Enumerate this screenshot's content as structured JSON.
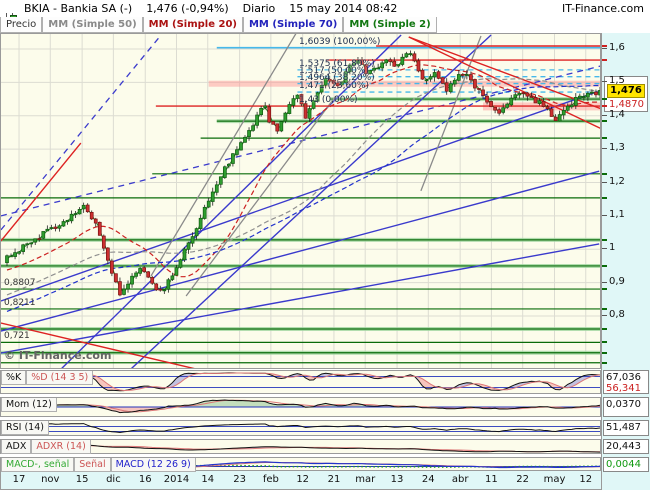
{
  "header": {
    "symbol_title": "BKIA - Bankia SA (-)",
    "quote": "1,476 (-0,94%)",
    "timeframe": "Diario",
    "datetime": "15 may 2014 08:42",
    "brand": "IT-Finance.com"
  },
  "legend": {
    "items": [
      {
        "label": "Precio",
        "color": "#333333"
      },
      {
        "label": "MM (Simple 50)",
        "color": "#8a8a8a"
      },
      {
        "label": "MM (Simple 20)",
        "color": "#aa1111"
      },
      {
        "label": "MM (Simple 70)",
        "color": "#2222bb"
      },
      {
        "label": "MM (Simple 2)",
        "color": "#117711"
      }
    ]
  },
  "price_axis": {
    "ticks": [
      {
        "text": "1,6",
        "value": 1.6
      },
      {
        "text": "1,5",
        "value": 1.5
      },
      {
        "text": "1,4",
        "value": 1.4
      },
      {
        "text": "1,3",
        "value": 1.3
      },
      {
        "text": "1,2",
        "value": 1.2
      },
      {
        "text": "1,1",
        "value": 1.1
      },
      {
        "text": "1",
        "value": 1.0
      },
      {
        "text": "0,9",
        "value": 0.9
      },
      {
        "text": "0,8",
        "value": 0.8
      }
    ],
    "current_label": "1,476",
    "ma_label": "1,4870",
    "current_value": 1.476
  },
  "watermark": "© IT-Finance.com",
  "chart_data": {
    "type": "candlestick",
    "title": "BKIA Bankia SA - Diario",
    "last_price": 1.476,
    "change_pct": -0.94,
    "price_range_visible": [
      0.64,
      1.645
    ],
    "num_candles": 148,
    "noise_amplitude": 0.009,
    "x_axis_labels": [
      {
        "text": "17",
        "pos": 0.03
      },
      {
        "text": "nov",
        "pos": 0.082
      },
      {
        "text": "15",
        "pos": 0.135
      },
      {
        "text": "dic",
        "pos": 0.187
      },
      {
        "text": "16",
        "pos": 0.24
      },
      {
        "text": "2014",
        "pos": 0.292
      },
      {
        "text": "14",
        "pos": 0.344
      },
      {
        "text": "23",
        "pos": 0.397
      },
      {
        "text": "feb",
        "pos": 0.449
      },
      {
        "text": "12",
        "pos": 0.502
      },
      {
        "text": "21",
        "pos": 0.554
      },
      {
        "text": "mar",
        "pos": 0.606
      },
      {
        "text": "13",
        "pos": 0.659
      },
      {
        "text": "24",
        "pos": 0.711
      },
      {
        "text": "abr",
        "pos": 0.764
      },
      {
        "text": "11",
        "pos": 0.816
      },
      {
        "text": "22",
        "pos": 0.868
      },
      {
        "text": "may",
        "pos": 0.921
      },
      {
        "text": "12",
        "pos": 0.973
      }
    ],
    "close_waypoints": [
      [
        0,
        0.98
      ],
      [
        3,
        1.0
      ],
      [
        8,
        1.04
      ],
      [
        13,
        1.07
      ],
      [
        19,
        1.13
      ],
      [
        23,
        1.05
      ],
      [
        26,
        0.93
      ],
      [
        28,
        0.86
      ],
      [
        31,
        0.92
      ],
      [
        33,
        0.95
      ],
      [
        36,
        0.9
      ],
      [
        38,
        0.87
      ],
      [
        40,
        0.9
      ],
      [
        43,
        0.97
      ],
      [
        46,
        1.04
      ],
      [
        49,
        1.12
      ],
      [
        52,
        1.2
      ],
      [
        55,
        1.26
      ],
      [
        59,
        1.33
      ],
      [
        62,
        1.4
      ],
      [
        64,
        1.43
      ],
      [
        65,
        1.38
      ],
      [
        67,
        1.36
      ],
      [
        70,
        1.44
      ],
      [
        72,
        1.46
      ],
      [
        74,
        1.4
      ],
      [
        77,
        1.47
      ],
      [
        79,
        1.52
      ],
      [
        82,
        1.49
      ],
      [
        85,
        1.55
      ],
      [
        87,
        1.57
      ],
      [
        89,
        1.52
      ],
      [
        92,
        1.55
      ],
      [
        94,
        1.57
      ],
      [
        96,
        1.54
      ],
      [
        99,
        1.595
      ],
      [
        101,
        1.57
      ],
      [
        103,
        1.51
      ],
      [
        106,
        1.53
      ],
      [
        109,
        1.47
      ],
      [
        111,
        1.51
      ],
      [
        114,
        1.53
      ],
      [
        116,
        1.49
      ],
      [
        119,
        1.44
      ],
      [
        122,
        1.41
      ],
      [
        125,
        1.46
      ],
      [
        127,
        1.47
      ],
      [
        130,
        1.45
      ],
      [
        133,
        1.43
      ],
      [
        135,
        1.4
      ],
      [
        136,
        1.38
      ],
      [
        139,
        1.43
      ],
      [
        141,
        1.45
      ],
      [
        144,
        1.46
      ],
      [
        147,
        1.476
      ]
    ],
    "prehistory_waypoints": [
      [
        -80,
        0.62
      ],
      [
        -60,
        0.68
      ],
      [
        -40,
        0.78
      ],
      [
        -20,
        0.9
      ],
      [
        -1,
        0.97
      ]
    ],
    "moving_averages": [
      {
        "name": "MM Simple 20",
        "period": 20,
        "color": "#cc2222",
        "dash": "5,3"
      },
      {
        "name": "MM Simple 50",
        "period": 50,
        "color": "#909090",
        "dash": "5,3"
      },
      {
        "name": "MM Simple 70",
        "period": 70,
        "color": "#2233cc",
        "dash": "5,3"
      },
      {
        "name": "MM Simple 2",
        "period": 2,
        "color": "#1a7a1a",
        "dash": ""
      }
    ],
    "fibonacci_levels": [
      {
        "label": "1,6039 (100,00%)",
        "value": 1.6039,
        "style": "solid",
        "from_i": 52
      },
      {
        "label": "1,5375 (61,80%)",
        "value": 1.5375,
        "style": "dashed",
        "from_i": 72
      },
      {
        "label": "1,517 (50,00%)",
        "value": 1.517,
        "style": "dashed",
        "from_i": 72
      },
      {
        "label": "1,4964 (38,20%)",
        "value": 1.4964,
        "style": "dashed",
        "from_i": 72
      },
      {
        "label": "1,471 (23,60%)",
        "value": 1.471,
        "style": "dashed",
        "from_i": 72
      },
      {
        "label": "1,43 (0,00%)",
        "value": 1.43,
        "style": "none",
        "from_i": 37
      }
    ],
    "support_lines_green": [
      {
        "value": 1.45,
        "from_i": 80,
        "glow": true
      },
      {
        "value": 1.384,
        "from_i": 52,
        "glow": true
      },
      {
        "value": 1.333,
        "from_i": 48,
        "glow": false
      },
      {
        "value": 1.226,
        "from_i": 36,
        "glow": false
      },
      {
        "value": 1.154,
        "from_i": -1.5,
        "glow": false
      },
      {
        "value": 1.028,
        "from_i": -1.5,
        "glow": true
      },
      {
        "value": 0.95,
        "from_i": -1.5,
        "glow": true
      },
      {
        "value": 0.8807,
        "from_i": -1.5,
        "glow": false
      },
      {
        "value": 0.8211,
        "from_i": -1.5,
        "glow": false
      },
      {
        "value": 0.761,
        "from_i": -1.5,
        "glow": true
      },
      {
        "value": 0.721,
        "from_i": -1.5,
        "glow": false
      },
      {
        "value": 0.69,
        "from_i": -1.5,
        "glow": true
      },
      {
        "value": 0.66,
        "from_i": -1.5,
        "glow": false
      }
    ],
    "resistance_lines_red": [
      {
        "pts": [
          [
            91.5,
            1.609
          ],
          [
            147.5,
            1.609
          ]
        ]
      },
      {
        "pts": [
          [
            79.1,
            1.567
          ],
          [
            147.5,
            1.567
          ]
        ]
      },
      {
        "pts": [
          [
            36.9,
            1.429
          ],
          [
            147.5,
            1.429
          ]
        ]
      },
      {
        "pts": [
          [
            99.6,
            1.636
          ],
          [
            147.5,
            1.42
          ]
        ]
      },
      {
        "pts": [
          [
            99.6,
            1.636
          ],
          [
            147.5,
            1.36
          ]
        ]
      },
      {
        "pts": [
          [
            -1.5,
            1.025
          ],
          [
            18.3,
            1.318
          ]
        ]
      },
      {
        "pts": [
          [
            -1.5,
            0.779
          ],
          [
            46.9,
            0.641
          ]
        ]
      }
    ],
    "pink_zones": [
      {
        "p_top": 1.505,
        "p_bot": 1.487,
        "from_i": 50,
        "to_i": 147.5
      },
      {
        "p_top": 1.44,
        "p_bot": 1.416,
        "from_i": 118,
        "to_i": 147.5
      }
    ],
    "trend_lines_blue_solid": [
      {
        "pts": [
          [
            13.4,
            0.641
          ],
          [
            97.7,
            1.642
          ]
        ]
      },
      {
        "pts": [
          [
            30.7,
            0.641
          ],
          [
            120.0,
            1.642
          ]
        ]
      },
      {
        "pts": [
          [
            -1.5,
            0.845
          ],
          [
            146.8,
            1.474
          ]
        ]
      },
      {
        "pts": [
          [
            -1.5,
            0.755
          ],
          [
            146.8,
            1.234
          ]
        ]
      },
      {
        "pts": [
          [
            -1.5,
            0.689
          ],
          [
            146.8,
            1.016
          ]
        ]
      }
    ],
    "trend_lines_blue_dashed": [
      {
        "pts": [
          [
            -1.5,
            1.058
          ],
          [
            38.2,
            1.642
          ]
        ]
      },
      {
        "pts": [
          [
            -1.5,
            1.1
          ],
          [
            147.5,
            1.55
          ]
        ]
      }
    ],
    "trend_lines_gray": [
      {
        "pts": [
          [
            35.7,
            0.92
          ],
          [
            72.9,
            1.672
          ]
        ]
      },
      {
        "pts": [
          [
            44.4,
            0.86
          ],
          [
            81.5,
            1.459
          ]
        ]
      },
      {
        "pts": [
          [
            102.6,
            1.175
          ],
          [
            117.5,
            1.639
          ]
        ]
      }
    ],
    "left_price_labels": [
      {
        "text": "0,8807",
        "value": 0.8807
      },
      {
        "text": "0,8211",
        "value": 0.8211
      },
      {
        "text": "0,721",
        "value": 0.721
      }
    ],
    "indicators": [
      {
        "id": "stoch",
        "height": 24,
        "params": [
          14,
          3,
          5
        ],
        "ref_lines": [
          20,
          80
        ],
        "labels": [
          {
            "text": "%K",
            "color": "#111111"
          },
          {
            "text": "%D (14 3 5)",
            "color": "#cc5555"
          }
        ],
        "values": [
          {
            "text": "67,036",
            "color": "#111111"
          },
          {
            "text": "56,341",
            "color": "#cc2222"
          }
        ]
      },
      {
        "id": "momentum",
        "height": 20,
        "params": [
          12
        ],
        "ref_lines": [
          0
        ],
        "labels": [
          {
            "text": "Mom (12)",
            "color": "#111111"
          }
        ],
        "values": [
          {
            "text": "0,0370",
            "color": "#111111"
          }
        ]
      },
      {
        "id": "rsi",
        "height": 16,
        "params": [
          14
        ],
        "ref_lines": [
          30,
          70
        ],
        "labels": [
          {
            "text": "RSI (14)",
            "color": "#111111"
          }
        ],
        "values": [
          {
            "text": "51,487",
            "color": "#111111"
          }
        ]
      },
      {
        "id": "adx",
        "height": 15,
        "params": [
          14
        ],
        "ref_lines": [],
        "labels": [
          {
            "text": "ADX",
            "color": "#111111"
          },
          {
            "text": "ADXR (14)",
            "color": "#cc5555"
          }
        ],
        "values": [
          {
            "text": "20,443",
            "color": "#111111"
          }
        ]
      },
      {
        "id": "macd",
        "height": 15,
        "params": [
          12,
          26,
          9
        ],
        "ref_lines": [
          0
        ],
        "labels": [
          {
            "text": "MACD-, señal",
            "color": "#33aa33"
          },
          {
            "text": "Señal",
            "color": "#cc5555"
          },
          {
            "text": "MACD (12 26 9)",
            "color": "#2222cc"
          }
        ],
        "values": [
          {
            "text": "0,0044",
            "color": "#119911"
          }
        ]
      }
    ]
  }
}
